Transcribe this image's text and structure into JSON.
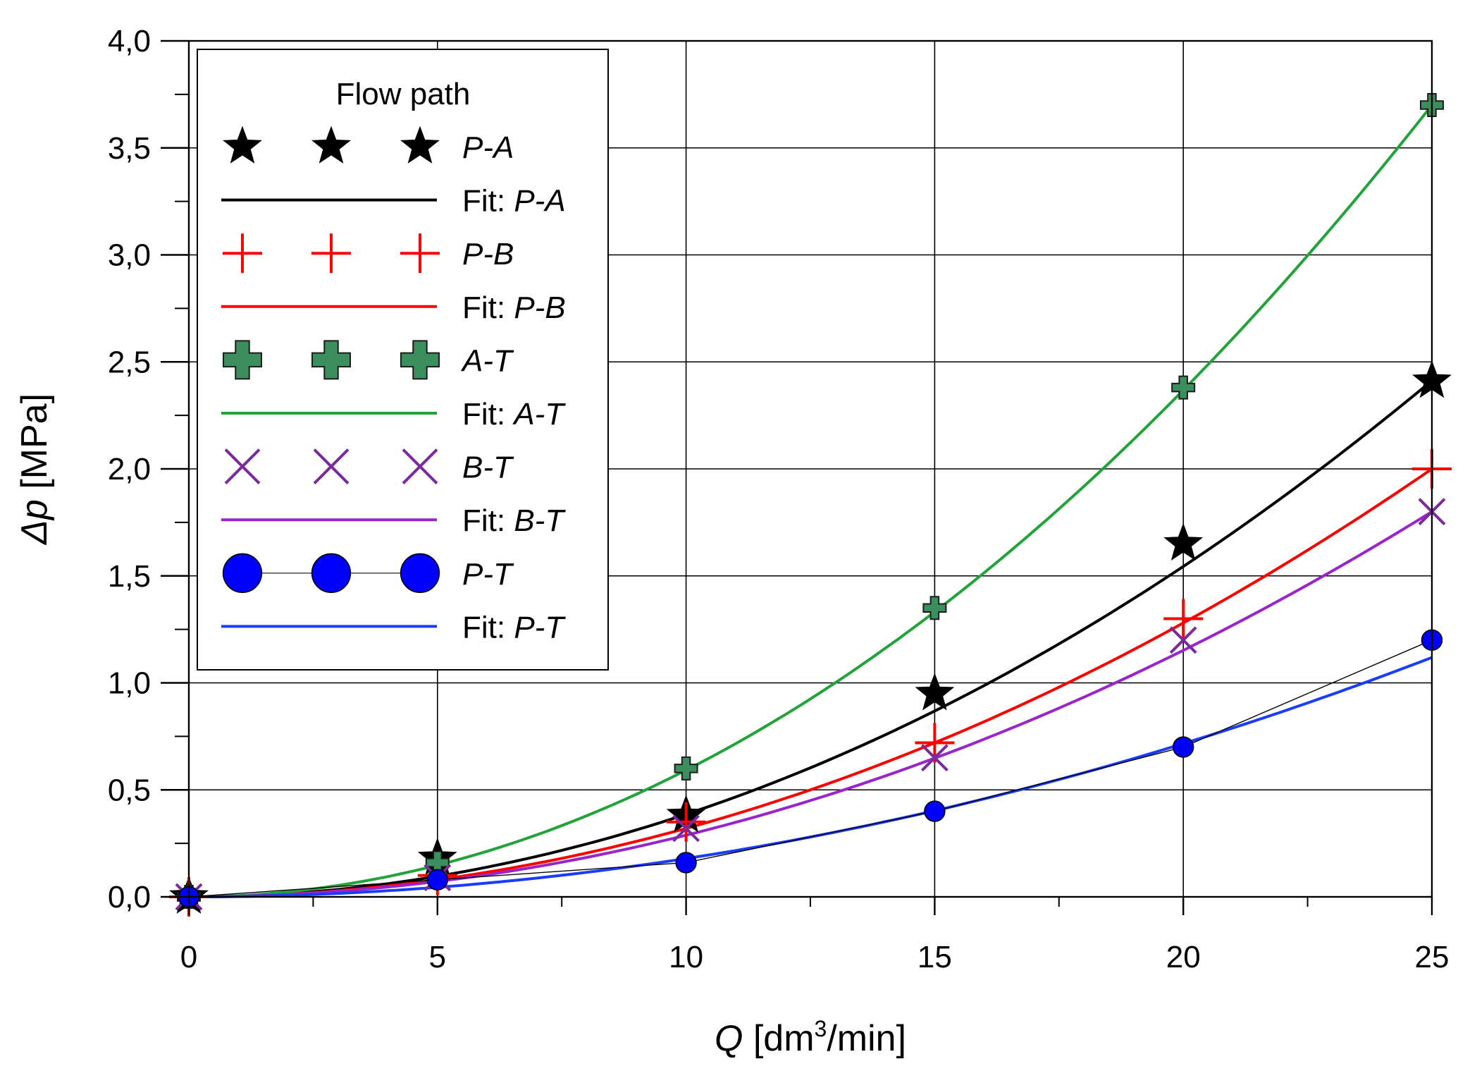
{
  "chart_data": {
    "type": "scatter",
    "xlabel_symbol": "Q",
    "xlabel_unit_prefix": " [dm",
    "xlabel_sup": "3",
    "xlabel_unit_suffix": "/min]",
    "ylabel_symbol": "Δp",
    "ylabel_unit": " [MPa]",
    "xlim": [
      0,
      25
    ],
    "ylim": [
      0,
      4
    ],
    "x_ticks": [
      0,
      5,
      10,
      15,
      20,
      25
    ],
    "x_tick_labels": [
      "0",
      "5",
      "10",
      "15",
      "20",
      "25"
    ],
    "y_ticks": [
      0,
      0.5,
      1,
      1.5,
      2,
      2.5,
      3,
      3.5,
      4
    ],
    "y_tick_labels": [
      "0,0",
      "0,5",
      "1,0",
      "1,5",
      "2,0",
      "2,5",
      "3,0",
      "3,5",
      "4,0"
    ],
    "grid": true,
    "legend_title": "Flow path",
    "legend_position": "top-left",
    "fit_prefix": "Fit: ",
    "series": [
      {
        "name": "P-A",
        "marker": "star",
        "color": "#000000",
        "fill": "#000000",
        "x": [
          0,
          5,
          10,
          15,
          20,
          25
        ],
        "y": [
          0,
          0.18,
          0.38,
          0.95,
          1.65,
          2.41
        ],
        "fit": {
          "name": "P-A",
          "color": "#000000",
          "a": 0.00386,
          "n": 2
        }
      },
      {
        "name": "P-B",
        "marker": "plus",
        "color": "#ff0000",
        "fill": "#ff0000",
        "x": [
          0,
          5,
          10,
          15,
          20,
          25
        ],
        "y": [
          0,
          0.1,
          0.35,
          0.72,
          1.3,
          2.0
        ],
        "fit": {
          "name": "P-B",
          "color": "#ff0000",
          "a": 0.0032,
          "n": 2
        }
      },
      {
        "name": "A-T",
        "marker": "thick-plus",
        "color": "#1c1c1c",
        "fill": "#3a8f5c",
        "x": [
          0,
          5,
          10,
          15,
          20,
          25
        ],
        "y": [
          0,
          0.16,
          0.6,
          1.35,
          2.38,
          3.7
        ],
        "fit": {
          "name": "A-T",
          "color": "#22a33a",
          "a": 0.00592,
          "n": 2
        }
      },
      {
        "name": "B-T",
        "marker": "x",
        "color": "#7a2a9c",
        "fill": "#7a2a9c",
        "x": [
          0,
          5,
          10,
          15,
          20,
          25
        ],
        "y": [
          0,
          0.09,
          0.32,
          0.65,
          1.2,
          1.8
        ],
        "fit": {
          "name": "B-T",
          "color": "#9a24cc",
          "a": 0.00288,
          "n": 2
        }
      },
      {
        "name": "P-T",
        "marker": "circle",
        "color": "#000000",
        "fill": "#0000ff",
        "connected": true,
        "x": [
          0,
          5,
          10,
          15,
          20,
          25
        ],
        "y": [
          0,
          0.08,
          0.16,
          0.4,
          0.7,
          1.2
        ],
        "fit": {
          "name": "P-T",
          "color": "#1a3cff",
          "a": 0.00179,
          "n": 2
        }
      }
    ]
  }
}
